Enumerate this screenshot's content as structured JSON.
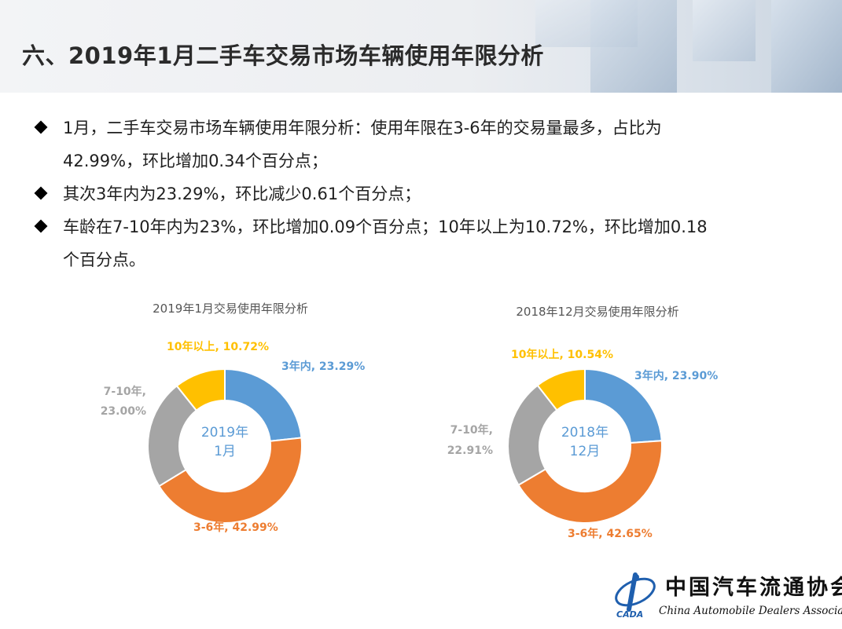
{
  "header": {
    "title": "六、2019年1月二手车交易市场车辆使用年限分析"
  },
  "bullets": [
    {
      "line1": "1月，二手车交易市场车辆使用年限分析：使用年限在3-6年的交易量最多，占比为",
      "line2": "42.99%，环比增加0.34个百分点；"
    },
    {
      "line1": "其次3年内为23.29%，环比减少0.61个百分点；",
      "line2": ""
    },
    {
      "line1": "车龄在7-10年内为23%，环比增加0.09个百分点；10年以上为10.72%，环比增加0.18",
      "line2": "个百分点。"
    }
  ],
  "chart_data": [
    {
      "type": "pie",
      "title": "2019年1月交易使用年限分析",
      "center_label_line1": "2019年",
      "center_label_line2": "1月",
      "slices": [
        {
          "name": "3年内",
          "value": 23.29,
          "color": "#5b9bd5",
          "label": "3年内, 23.29%"
        },
        {
          "name": "3-6年",
          "value": 42.99,
          "color": "#ed7d31",
          "label": "3-6年, 42.99%"
        },
        {
          "name": "7-10年",
          "value": 23.0,
          "color": "#a5a5a5",
          "label_line1": "7-10年,",
          "label_line2": "23.00%"
        },
        {
          "name": "10年以上",
          "value": 10.72,
          "color": "#ffc000",
          "label": "10年以上, 10.72%"
        }
      ]
    },
    {
      "type": "pie",
      "title": "2018年12月交易使用年限分析",
      "center_label_line1": "2018年",
      "center_label_line2": "12月",
      "slices": [
        {
          "name": "3年内",
          "value": 23.9,
          "color": "#5b9bd5",
          "label": "3年内, 23.90%"
        },
        {
          "name": "3-6年",
          "value": 42.65,
          "color": "#ed7d31",
          "label": "3-6年, 42.65%"
        },
        {
          "name": "7-10年",
          "value": 22.91,
          "color": "#a5a5a5",
          "label_line1": "7-10年,",
          "label_line2": "22.91%"
        },
        {
          "name": "10年以上",
          "value": 10.54,
          "color": "#ffc000",
          "label": "10年以上, 10.54%"
        }
      ]
    }
  ],
  "logo": {
    "cn_text": "中国汽车流通协会",
    "en_text": "China Automobile Dealers Association",
    "abbr": "CADA"
  }
}
